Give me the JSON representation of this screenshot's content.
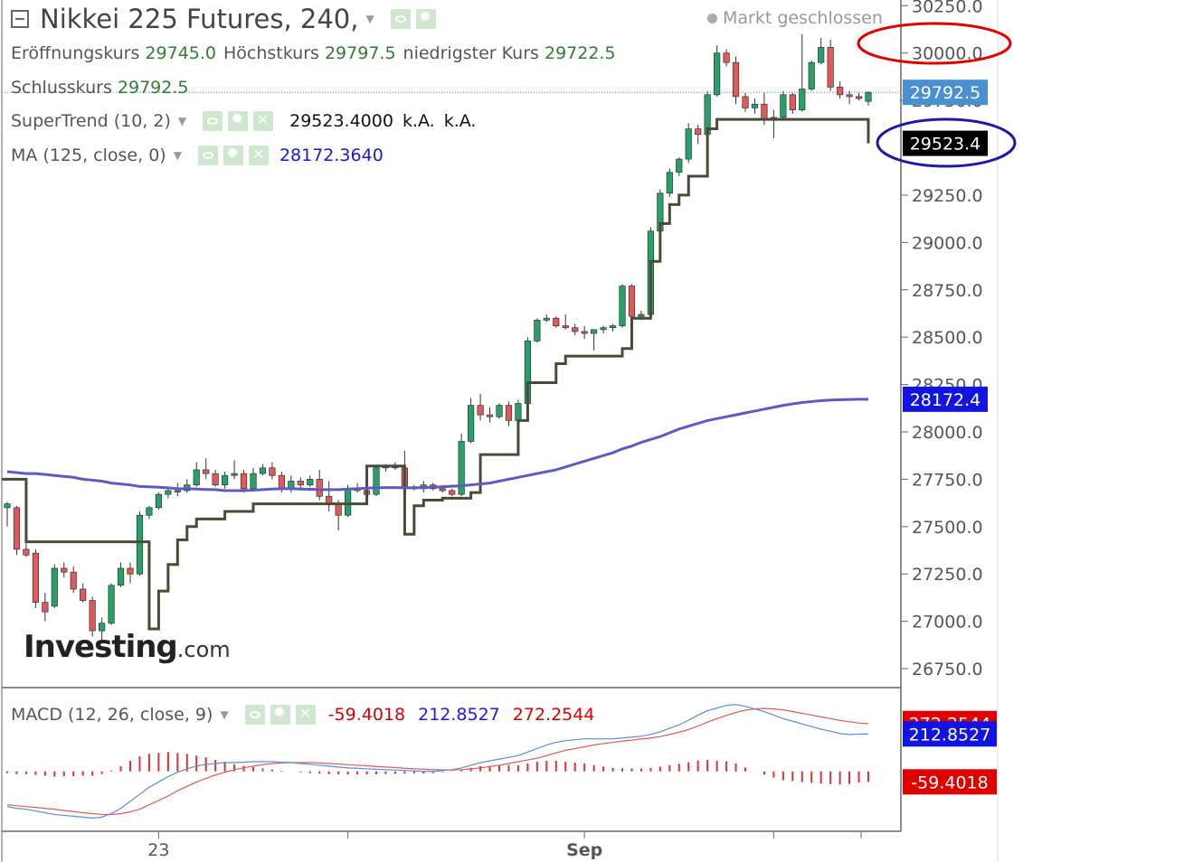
{
  "header": {
    "symbol": "Nikkei 225 Futures, 240,",
    "market_status": "Markt geschlossen"
  },
  "ohlc": {
    "open_label": "Eröffnungskurs",
    "open_value": "29745.0",
    "high_label": "Höchstkurs",
    "high_value": "29797.5",
    "low_label": "niedrigster Kurs",
    "low_value": "29722.5",
    "close_label": "Schlusskurs",
    "close_value": "29792.5"
  },
  "indicators": {
    "supertrend": {
      "label": "SuperTrend (10, 2)",
      "value": "29523.4000",
      "na1": "k.A.",
      "na2": "k.A."
    },
    "ma": {
      "label": "MA (125, close, 0)",
      "value": "28172.3640"
    },
    "macd": {
      "label": "MACD (12, 26, close, 9)",
      "hist": "-59.4018",
      "macd": "212.8527",
      "signal": "272.2544"
    }
  },
  "price_badges": {
    "close": "29792.5",
    "supertrend": "29523.4",
    "ma": "28172.4",
    "macd_signal": "272.2544",
    "macd_line": "212.8527",
    "macd_hist": "-59.4018"
  },
  "colors": {
    "up": "#26a269",
    "down": "#e05a5a",
    "supertrend": "#4a4a38",
    "ma": "#5c5cc0",
    "close_badge": "#4a8fd0",
    "ma_badge": "#1414e0",
    "macd_line": "#5a8fd8",
    "signal_line": "#e05a5a",
    "hist": "#e03030",
    "macd_badge_blue": "#1414e0",
    "macd_badge_red": "#e00000",
    "highlight_red": "#e00000",
    "highlight_blue": "#1a1aa8"
  },
  "logo": {
    "main": "Investing",
    "suffix": ".com"
  },
  "chart_data": {
    "type": "candlestick",
    "x_ticks": [
      "23",
      "Sep"
    ],
    "y_ticks": [
      "30250.0",
      "30000.0",
      "29750.0",
      "29250.0",
      "29000.0",
      "28750.0",
      "28500.0",
      "28250.0",
      "28000.0",
      "27750.0",
      "27500.0",
      "27250.0",
      "27000.0",
      "26750.0"
    ],
    "ylim": [
      26650,
      30280
    ],
    "ohlc": [
      [
        27600,
        27630,
        27500,
        27620
      ],
      [
        27600,
        27610,
        27350,
        27380
      ],
      [
        27380,
        27420,
        27340,
        27350
      ],
      [
        27360,
        27380,
        27070,
        27100
      ],
      [
        27100,
        27150,
        27000,
        27050
      ],
      [
        27080,
        27300,
        27070,
        27280
      ],
      [
        27280,
        27310,
        27230,
        27260
      ],
      [
        27260,
        27290,
        27150,
        27170
      ],
      [
        27170,
        27200,
        27100,
        27110
      ],
      [
        27110,
        27130,
        26920,
        26950
      ],
      [
        26950,
        27020,
        26900,
        26990
      ],
      [
        26990,
        27200,
        26980,
        27190
      ],
      [
        27190,
        27310,
        27180,
        27280
      ],
      [
        27280,
        27310,
        27200,
        27250
      ],
      [
        27250,
        27580,
        27240,
        27560
      ],
      [
        27560,
        27610,
        27540,
        27600
      ],
      [
        27600,
        27680,
        27590,
        27670
      ],
      [
        27670,
        27700,
        27650,
        27690
      ],
      [
        27690,
        27730,
        27660,
        27690
      ],
      [
        27690,
        27750,
        27680,
        27720
      ],
      [
        27720,
        27840,
        27710,
        27800
      ],
      [
        27800,
        27860,
        27750,
        27780
      ],
      [
        27780,
        27800,
        27710,
        27720
      ],
      [
        27720,
        27790,
        27700,
        27770
      ],
      [
        27770,
        27850,
        27750,
        27780
      ],
      [
        27780,
        27800,
        27680,
        27700
      ],
      [
        27700,
        27810,
        27690,
        27780
      ],
      [
        27780,
        27830,
        27770,
        27810
      ],
      [
        27810,
        27840,
        27750,
        27770
      ],
      [
        27770,
        27790,
        27680,
        27700
      ],
      [
        27700,
        27770,
        27680,
        27740
      ],
      [
        27740,
        27760,
        27700,
        27720
      ],
      [
        27720,
        27770,
        27710,
        27750
      ],
      [
        27750,
        27800,
        27640,
        27660
      ],
      [
        27660,
        27740,
        27580,
        27620
      ],
      [
        27620,
        27640,
        27480,
        27560
      ],
      [
        27560,
        27720,
        27550,
        27700
      ],
      [
        27700,
        27730,
        27680,
        27690
      ],
      [
        27690,
        27700,
        27650,
        27670
      ],
      [
        27670,
        27820,
        27660,
        27810
      ],
      [
        27810,
        27830,
        27790,
        27820
      ],
      [
        27820,
        27840,
        27800,
        27810
      ],
      [
        27810,
        27900,
        27690,
        27710
      ],
      [
        27710,
        27720,
        27690,
        27700
      ],
      [
        27700,
        27740,
        27680,
        27720
      ],
      [
        27720,
        27730,
        27690,
        27700
      ],
      [
        27700,
        27720,
        27680,
        27690
      ],
      [
        27690,
        27700,
        27660,
        27670
      ],
      [
        27670,
        27990,
        27660,
        27950
      ],
      [
        27950,
        28180,
        27940,
        28140
      ],
      [
        28140,
        28200,
        28060,
        28090
      ],
      [
        28090,
        28130,
        28050,
        28080
      ],
      [
        28080,
        28150,
        28070,
        28140
      ],
      [
        28140,
        28160,
        28030,
        28060
      ],
      [
        28060,
        28170,
        28050,
        28150
      ],
      [
        28150,
        28500,
        28140,
        28480
      ],
      [
        28480,
        28600,
        28470,
        28590
      ],
      [
        28590,
        28620,
        28580,
        28600
      ],
      [
        28600,
        28610,
        28550,
        28560
      ],
      [
        28560,
        28620,
        28540,
        28550
      ],
      [
        28550,
        28570,
        28510,
        28530
      ],
      [
        28530,
        28560,
        28490,
        28520
      ],
      [
        28520,
        28540,
        28430,
        28540
      ],
      [
        28540,
        28560,
        28520,
        28550
      ],
      [
        28550,
        28570,
        28530,
        28560
      ],
      [
        28560,
        28780,
        28550,
        28770
      ],
      [
        28770,
        28780,
        28590,
        28610
      ],
      [
        28610,
        28640,
        28590,
        28620
      ],
      [
        28620,
        29080,
        28610,
        29060
      ],
      [
        29060,
        29280,
        29040,
        29260
      ],
      [
        29260,
        29390,
        29240,
        29370
      ],
      [
        29370,
        29450,
        29350,
        29440
      ],
      [
        29440,
        29630,
        29420,
        29600
      ],
      [
        29600,
        29620,
        29520,
        29570
      ],
      [
        29570,
        29800,
        29560,
        29780
      ],
      [
        29780,
        30040,
        29770,
        30000
      ],
      [
        30000,
        30020,
        29930,
        29950
      ],
      [
        29950,
        29980,
        29730,
        29770
      ],
      [
        29770,
        29790,
        29690,
        29710
      ],
      [
        29710,
        29760,
        29680,
        29730
      ],
      [
        29730,
        29790,
        29620,
        29650
      ],
      [
        29650,
        29700,
        29550,
        29660
      ],
      [
        29660,
        29800,
        29650,
        29780
      ],
      [
        29780,
        29790,
        29680,
        29700
      ],
      [
        29700,
        30100,
        29690,
        29810
      ],
      [
        29810,
        29960,
        29800,
        29950
      ],
      [
        29950,
        30080,
        29940,
        30030
      ],
      [
        30030,
        30070,
        29800,
        29820
      ],
      [
        29820,
        29850,
        29760,
        29780
      ],
      [
        29780,
        29800,
        29730,
        29770
      ],
      [
        29770,
        29790,
        29750,
        29760
      ],
      [
        29745,
        29797.5,
        29722.5,
        29792.5
      ]
    ],
    "supertrend": [
      27750,
      27750,
      27420,
      27420,
      27420,
      27420,
      27420,
      27420,
      27420,
      27420,
      27420,
      27420,
      27420,
      27420,
      27420,
      26960,
      27160,
      27300,
      27430,
      27500,
      27540,
      27540,
      27540,
      27580,
      27580,
      27580,
      27620,
      27620,
      27620,
      27620,
      27620,
      27620,
      27620,
      27620,
      27620,
      27620,
      27620,
      27620,
      27820,
      27820,
      27820,
      27820,
      27460,
      27610,
      27640,
      27640,
      27650,
      27650,
      27650,
      27680,
      27880,
      27880,
      27880,
      27880,
      28060,
      28260,
      28260,
      28260,
      28360,
      28400,
      28400,
      28400,
      28400,
      28400,
      28400,
      28440,
      28600,
      28600,
      28900,
      29100,
      29200,
      29250,
      29350,
      29350,
      29600,
      29650,
      29650,
      29650,
      29650,
      29650,
      29650,
      29650,
      29650,
      29650,
      29650,
      29650,
      29650,
      29650,
      29650,
      29650,
      29650,
      29523.4
    ],
    "ma": [
      27790,
      27785,
      27780,
      27780,
      27775,
      27770,
      27765,
      27760,
      27750,
      27745,
      27740,
      27730,
      27725,
      27720,
      27712,
      27710,
      27708,
      27705,
      27700,
      27700,
      27698,
      27696,
      27695,
      27690,
      27690,
      27690,
      27692,
      27695,
      27698,
      27700,
      27700,
      27698,
      27697,
      27695,
      27695,
      27695,
      27698,
      27700,
      27703,
      27705,
      27706,
      27706,
      27705,
      27705,
      27706,
      27708,
      27710,
      27713,
      27716,
      27720,
      27725,
      27730,
      27740,
      27750,
      27760,
      27770,
      27780,
      27790,
      27800,
      27815,
      27830,
      27845,
      27860,
      27875,
      27890,
      27910,
      27925,
      27945,
      27960,
      27975,
      27995,
      28015,
      28030,
      28045,
      28060,
      28070,
      28080,
      28090,
      28100,
      28110,
      28120,
      28130,
      28140,
      28148,
      28155,
      28160,
      28165,
      28168,
      28170,
      28171,
      28172,
      28172.364
    ],
    "macd_panel": {
      "macd_line": [
        -200,
        -210,
        -215,
        -225,
        -235,
        -245,
        -250,
        -255,
        -260,
        -265,
        -260,
        -240,
        -210,
        -170,
        -130,
        -90,
        -60,
        -30,
        -5,
        15,
        30,
        40,
        45,
        50,
        50,
        52,
        55,
        55,
        55,
        52,
        50,
        45,
        40,
        35,
        30,
        25,
        20,
        18,
        15,
        12,
        10,
        8,
        5,
        3,
        0,
        0,
        5,
        10,
        20,
        35,
        50,
        60,
        70,
        80,
        90,
        110,
        130,
        150,
        165,
        175,
        180,
        185,
        185,
        185,
        185,
        190,
        195,
        200,
        210,
        225,
        245,
        265,
        290,
        320,
        345,
        360,
        375,
        380,
        370,
        355,
        340,
        320,
        300,
        285,
        270,
        255,
        240,
        228,
        215,
        210,
        212,
        212.8527
      ],
      "signal_line": [
        -190,
        -195,
        -200,
        -205,
        -210,
        -215,
        -222,
        -228,
        -235,
        -240,
        -245,
        -245,
        -240,
        -230,
        -215,
        -190,
        -165,
        -140,
        -110,
        -85,
        -60,
        -40,
        -20,
        -5,
        10,
        20,
        30,
        38,
        45,
        48,
        50,
        50,
        50,
        48,
        45,
        42,
        38,
        35,
        32,
        28,
        25,
        22,
        18,
        15,
        12,
        10,
        9,
        8,
        10,
        14,
        20,
        28,
        35,
        45,
        55,
        65,
        75,
        90,
        105,
        120,
        130,
        140,
        150,
        158,
        165,
        172,
        178,
        184,
        190,
        198,
        210,
        222,
        238,
        258,
        280,
        300,
        318,
        335,
        348,
        355,
        358,
        355,
        350,
        340,
        330,
        320,
        310,
        300,
        290,
        282,
        275,
        272.2544
      ],
      "histogram": [
        -10,
        -15,
        -15,
        -20,
        -25,
        -30,
        -28,
        -27,
        -25,
        -25,
        -15,
        5,
        30,
        60,
        85,
        100,
        105,
        110,
        105,
        100,
        90,
        80,
        65,
        55,
        40,
        32,
        25,
        17,
        10,
        4,
        0,
        -5,
        -10,
        -13,
        -15,
        -17,
        -18,
        -17,
        -17,
        -16,
        -15,
        -14,
        -13,
        -12,
        -12,
        -10,
        -4,
        2,
        10,
        21,
        30,
        32,
        35,
        35,
        35,
        45,
        55,
        60,
        60,
        55,
        50,
        45,
        35,
        27,
        20,
        18,
        17,
        16,
        20,
        27,
        35,
        43,
        52,
        62,
        65,
        60,
        57,
        45,
        22,
        0,
        -18,
        -35,
        -50,
        -55,
        -60,
        -65,
        -70,
        -72,
        -75,
        -72,
        -63,
        -59.4018
      ],
      "ylim": [
        -330,
        430
      ]
    }
  }
}
